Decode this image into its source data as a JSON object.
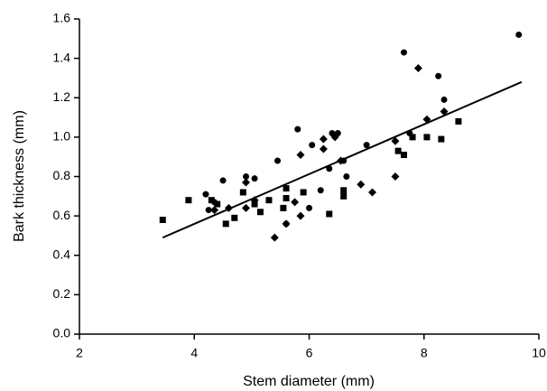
{
  "chart_data": {
    "type": "scatter",
    "x_label": "Stem diameter (mm)",
    "y_label": "Bark thickness (mm)",
    "xlim": [
      2,
      10
    ],
    "xticks": [
      2,
      4,
      6,
      8,
      10
    ],
    "ylim": [
      0,
      1.6
    ],
    "yticks": [
      {
        "value": 0,
        "label": "0.0"
      },
      0.2,
      0.4,
      0.6,
      0.8,
      {
        "value": 1,
        "label": "1.0"
      },
      1.2,
      1.4,
      1.6
    ],
    "grid": false,
    "series": [
      {
        "marker": "circle",
        "color": "#000000",
        "x": [
          4.2,
          4.25,
          4.35,
          4.5,
          4.9,
          5.05,
          5.45,
          5.6,
          5.8,
          6.05,
          6.0,
          6.2,
          6.35,
          6.4,
          6.5,
          6.6,
          6.65,
          7.0,
          7.65,
          7.75,
          8.25,
          8.35,
          9.65
        ],
        "values": [
          0.71,
          0.63,
          0.67,
          0.78,
          0.8,
          0.79,
          0.88,
          0.56,
          1.04,
          0.96,
          0.64,
          0.73,
          0.84,
          1.02,
          1.02,
          0.88,
          0.8,
          0.96,
          1.43,
          1.02,
          1.31,
          1.19,
          1.52
        ]
      },
      {
        "marker": "square",
        "color": "#000000",
        "x": [
          3.45,
          3.9,
          4.3,
          4.4,
          4.55,
          4.7,
          4.85,
          5.05,
          5.15,
          5.3,
          5.55,
          5.6,
          5.6,
          5.9,
          6.35,
          6.6,
          6.6,
          7.55,
          7.65,
          7.8,
          8.05,
          8.3,
          8.6
        ],
        "values": [
          0.58,
          0.68,
          0.68,
          0.66,
          0.56,
          0.59,
          0.72,
          0.66,
          0.62,
          0.68,
          0.64,
          0.69,
          0.74,
          0.72,
          0.61,
          0.7,
          0.73,
          0.93,
          0.91,
          1.0,
          1.0,
          0.99,
          1.08
        ]
      },
      {
        "marker": "diamond",
        "color": "#000000",
        "x": [
          4.35,
          4.6,
          4.9,
          4.9,
          5.05,
          5.4,
          5.6,
          5.75,
          5.85,
          5.85,
          6.25,
          6.25,
          6.45,
          6.55,
          6.9,
          7.1,
          7.5,
          7.5,
          7.9,
          8.05,
          8.35
        ],
        "values": [
          0.63,
          0.64,
          0.64,
          0.77,
          0.68,
          0.49,
          0.56,
          0.67,
          0.6,
          0.91,
          0.94,
          0.99,
          1.0,
          0.88,
          0.76,
          0.72,
          0.8,
          0.98,
          1.35,
          1.09,
          1.13
        ]
      }
    ],
    "trendline": {
      "x": [
        3.45,
        9.7
      ],
      "values": [
        0.49,
        1.28
      ],
      "color": "#000000"
    }
  }
}
